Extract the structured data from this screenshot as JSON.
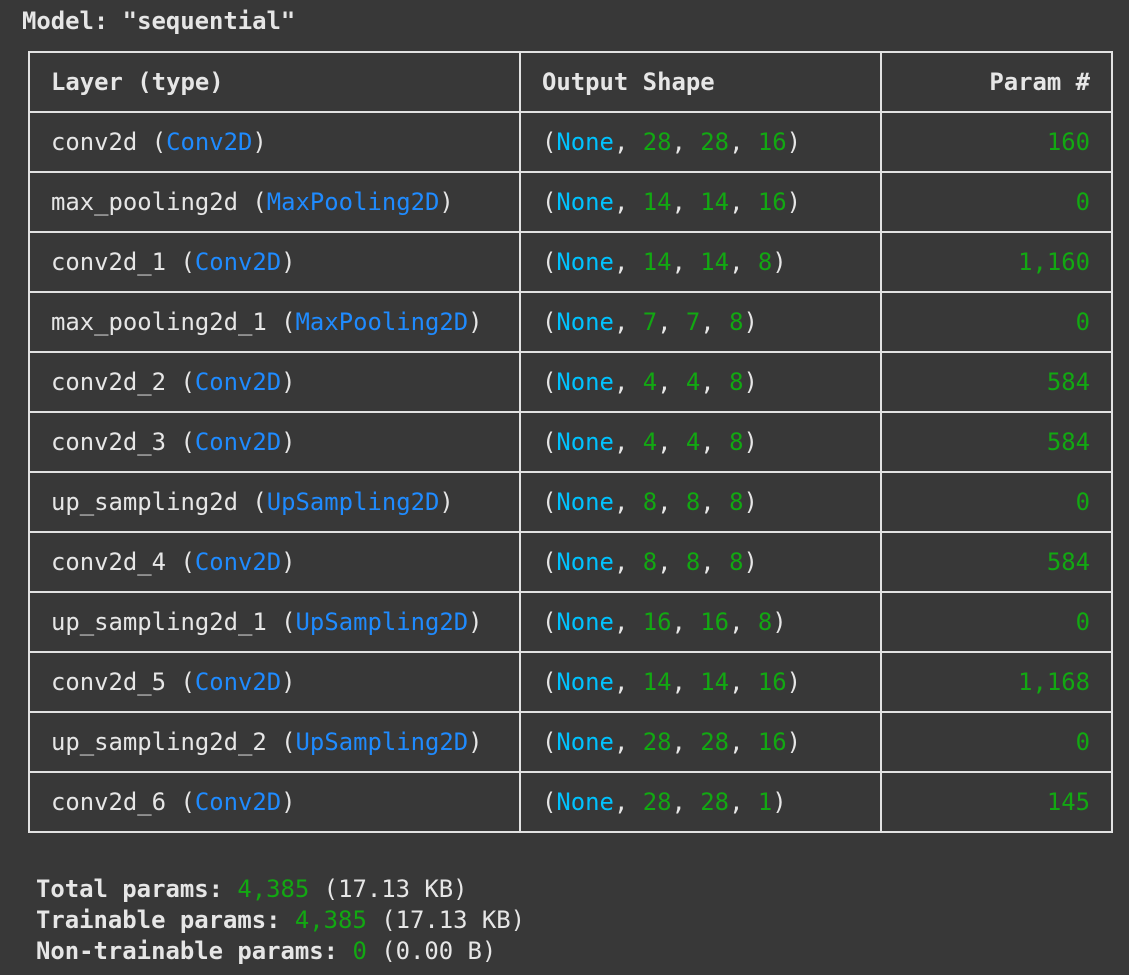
{
  "model_title": "Model: \"sequential\"",
  "headers": {
    "layer": "Layer (type)",
    "shape": "Output Shape",
    "params": "Param #"
  },
  "rows": [
    {
      "name": "conv2d",
      "type": "Conv2D",
      "shape": [
        "None",
        "28",
        "28",
        "16"
      ],
      "params": "160"
    },
    {
      "name": "max_pooling2d",
      "type": "MaxPooling2D",
      "shape": [
        "None",
        "14",
        "14",
        "16"
      ],
      "params": "0"
    },
    {
      "name": "conv2d_1",
      "type": "Conv2D",
      "shape": [
        "None",
        "14",
        "14",
        "8"
      ],
      "params": "1,160"
    },
    {
      "name": "max_pooling2d_1",
      "type": "MaxPooling2D",
      "shape": [
        "None",
        "7",
        "7",
        "8"
      ],
      "params": "0"
    },
    {
      "name": "conv2d_2",
      "type": "Conv2D",
      "shape": [
        "None",
        "4",
        "4",
        "8"
      ],
      "params": "584"
    },
    {
      "name": "conv2d_3",
      "type": "Conv2D",
      "shape": [
        "None",
        "4",
        "4",
        "8"
      ],
      "params": "584"
    },
    {
      "name": "up_sampling2d",
      "type": "UpSampling2D",
      "shape": [
        "None",
        "8",
        "8",
        "8"
      ],
      "params": "0"
    },
    {
      "name": "conv2d_4",
      "type": "Conv2D",
      "shape": [
        "None",
        "8",
        "8",
        "8"
      ],
      "params": "584"
    },
    {
      "name": "up_sampling2d_1",
      "type": "UpSampling2D",
      "shape": [
        "None",
        "16",
        "16",
        "8"
      ],
      "params": "0"
    },
    {
      "name": "conv2d_5",
      "type": "Conv2D",
      "shape": [
        "None",
        "14",
        "14",
        "16"
      ],
      "params": "1,168"
    },
    {
      "name": "up_sampling2d_2",
      "type": "UpSampling2D",
      "shape": [
        "None",
        "28",
        "28",
        "16"
      ],
      "params": "0"
    },
    {
      "name": "conv2d_6",
      "type": "Conv2D",
      "shape": [
        "None",
        "28",
        "28",
        "1"
      ],
      "params": "145"
    }
  ],
  "summary": [
    {
      "label": "Total params: ",
      "value": "4,385",
      "size": " (17.13 KB)"
    },
    {
      "label": "Trainable params: ",
      "value": "4,385",
      "size": " (17.13 KB)"
    },
    {
      "label": "Non-trainable params: ",
      "value": "0",
      "size": " (0.00 B)"
    }
  ],
  "colors": {
    "background": "#383838",
    "text": "#e6e6e6",
    "type": "#1f8bff",
    "none": "#00c3ff",
    "number": "#12a812"
  }
}
